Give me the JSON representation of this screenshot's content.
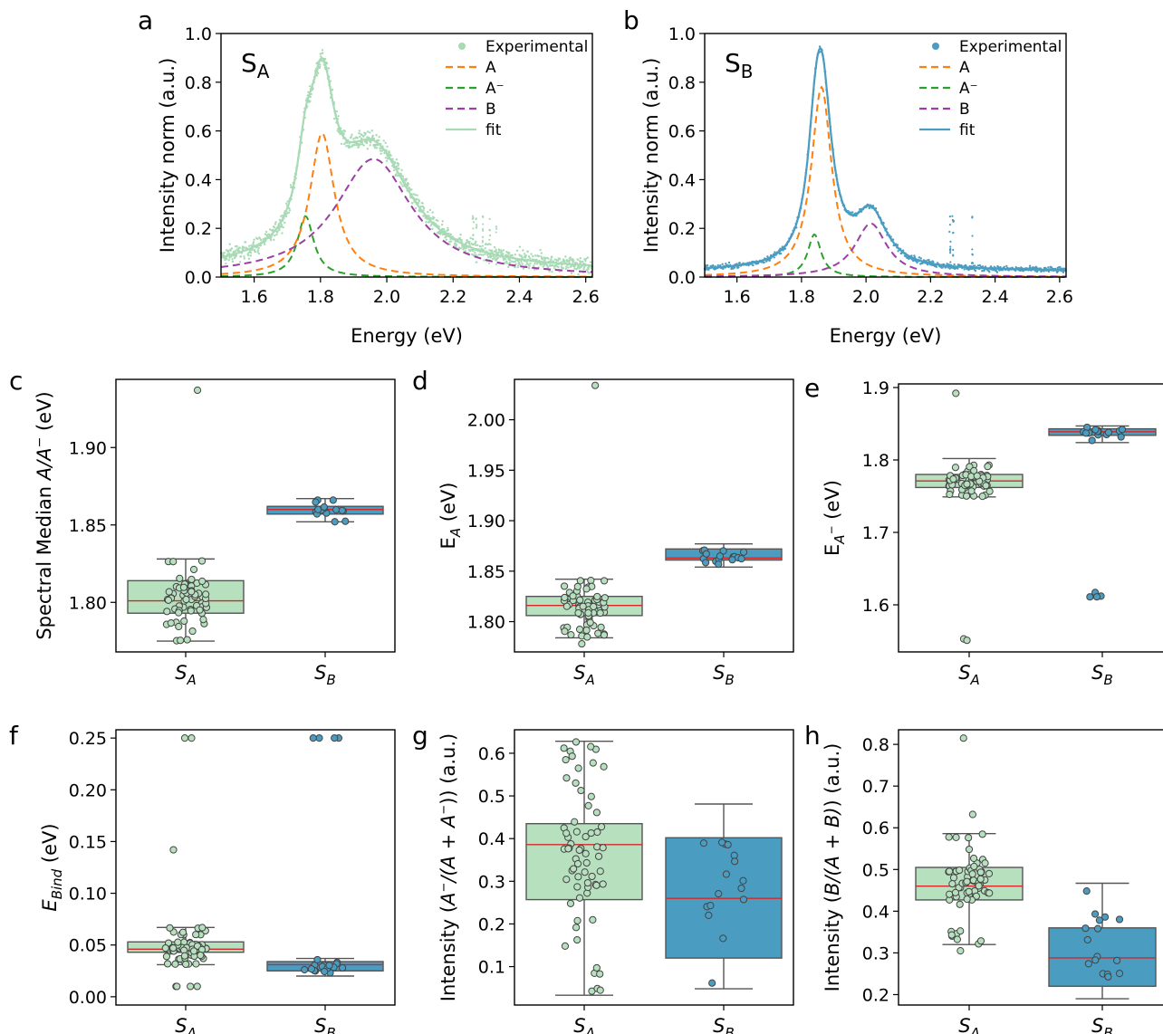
{
  "colors": {
    "sa_light": "#a8dab5",
    "sa_face": "#b7e0bf",
    "sb": "#4a9cc0",
    "sb_face": "#4a9cc0",
    "A": "#ff7f0e",
    "Aminus": "#2ca02c",
    "B": "#9b3fa3",
    "median": "#d62728",
    "edge": "#555555"
  },
  "chart_data": [
    {
      "panel": "a",
      "type": "line",
      "label_text": "S",
      "label_sub": "A",
      "xlabel": "Energy (eV)",
      "ylabel": "Intensity norm (a.u.)",
      "xlim": [
        1.5,
        2.62
      ],
      "ylim": [
        0,
        1.0
      ],
      "xticks": [
        "1.6",
        "1.8",
        "2.0",
        "2.2",
        "2.4",
        "2.6"
      ],
      "yticks": [
        "0.0",
        "0.2",
        "0.4",
        "0.6",
        "0.8",
        "1.0"
      ],
      "legend": [
        "Experimental",
        "A",
        "A⁻",
        "B",
        "fit"
      ],
      "legend_position": "top-right",
      "peaks": {
        "A": [
          1.805,
          0.59,
          0.045
        ],
        "Aminus": [
          1.755,
          0.25,
          0.03
        ],
        "B": [
          1.96,
          0.485,
          0.14
        ]
      },
      "x_range": [
        1.5,
        2.62
      ]
    },
    {
      "panel": "b",
      "type": "line",
      "label_text": "S",
      "label_sub": "B",
      "xlabel": "Energy (eV)",
      "ylabel": "Intensity norm (a.u.)",
      "xlim": [
        1.5,
        2.62
      ],
      "ylim": [
        0,
        1.0
      ],
      "xticks": [
        "1.6",
        "1.8",
        "2.0",
        "2.2",
        "2.4",
        "2.6"
      ],
      "yticks": [
        "0.0",
        "0.2",
        "0.4",
        "0.6",
        "0.8",
        "1.0"
      ],
      "legend": [
        "Experimental",
        "A",
        "A⁻",
        "B",
        "fit"
      ],
      "legend_position": "top-right",
      "peaks": {
        "A": [
          1.862,
          0.78,
          0.038
        ],
        "Aminus": [
          1.84,
          0.175,
          0.025
        ],
        "B": [
          2.015,
          0.22,
          0.06
        ]
      },
      "x_range": [
        1.5,
        2.62
      ]
    },
    {
      "panel": "c",
      "type": "box",
      "ylabel": "Spectral Median A/A⁻ (eV)",
      "ylabel_parts": [
        "Spectral Median ",
        "A/A",
        "−",
        " (eV)"
      ],
      "ylim": [
        1.768,
        1.944
      ],
      "yticks": [
        "1.80",
        "1.85",
        "1.90"
      ],
      "categories": [
        "SA",
        "SB"
      ],
      "groups": [
        {
          "name": "SA",
          "whisker_low": 1.775,
          "q1": 1.793,
          "median": 1.801,
          "q3": 1.814,
          "whisker_high": 1.828,
          "outliers": [
            1.937
          ],
          "n": 65
        },
        {
          "name": "SB",
          "whisker_low": 1.852,
          "q1": 1.857,
          "median": 1.86,
          "q3": 1.862,
          "whisker_high": 1.867,
          "outliers": [],
          "n": 16
        }
      ]
    },
    {
      "panel": "d",
      "type": "box",
      "ylabel": "E_A (eV)",
      "ylim": [
        1.77,
        2.04
      ],
      "yticks": [
        "1.80",
        "1.85",
        "1.90",
        "1.95",
        "2.00"
      ],
      "categories": [
        "SA",
        "SB"
      ],
      "groups": [
        {
          "name": "SA",
          "whisker_low": 1.784,
          "q1": 1.806,
          "median": 1.816,
          "q3": 1.825,
          "whisker_high": 1.842,
          "outliers": [
            2.034,
            1.778
          ],
          "n": 65
        },
        {
          "name": "SB",
          "whisker_low": 1.854,
          "q1": 1.861,
          "median": 1.863,
          "q3": 1.872,
          "whisker_high": 1.877,
          "outliers": [],
          "n": 16
        }
      ]
    },
    {
      "panel": "e",
      "type": "box",
      "ylabel": "E_A⁻ (eV)",
      "ylim": [
        1.535,
        1.905
      ],
      "yticks": [
        "1.6",
        "1.7",
        "1.8",
        "1.9"
      ],
      "categories": [
        "SA",
        "SB"
      ],
      "groups": [
        {
          "name": "SA",
          "whisker_low": 1.749,
          "q1": 1.762,
          "median": 1.771,
          "q3": 1.78,
          "whisker_high": 1.802,
          "outliers": [
            1.892,
            1.553,
            1.551
          ],
          "n": 65
        },
        {
          "name": "SB",
          "whisker_low": 1.824,
          "q1": 1.834,
          "median": 1.839,
          "q3": 1.843,
          "whisker_high": 1.847,
          "outliers": [
            1.617,
            1.612,
            1.611,
            1.611
          ],
          "n": 16
        }
      ]
    },
    {
      "panel": "f",
      "type": "box",
      "ylabel": "E_Bind (eV)",
      "ylim": [
        -0.008,
        0.258
      ],
      "yticks": [
        "0.00",
        "0.05",
        "0.10",
        "0.15",
        "0.20",
        "0.25"
      ],
      "categories": [
        "SA",
        "SB"
      ],
      "groups": [
        {
          "name": "SA",
          "whisker_low": 0.031,
          "q1": 0.043,
          "median": 0.046,
          "q3": 0.053,
          "whisker_high": 0.067,
          "outliers": [
            0.25,
            0.25,
            0.142,
            0.01,
            0.01,
            0.01,
            0.01
          ],
          "n": 65
        },
        {
          "name": "SB",
          "whisker_low": 0.02,
          "q1": 0.025,
          "median": 0.031,
          "q3": 0.034,
          "whisker_high": 0.037,
          "outliers": [
            0.25,
            0.25,
            0.25,
            0.25
          ],
          "n": 16
        }
      ]
    },
    {
      "panel": "g",
      "type": "box",
      "ylabel": "Intensity (A⁻/(A+A⁻)) (a.u.)",
      "ylim": [
        0.01,
        0.655
      ],
      "yticks": [
        "0.1",
        "0.2",
        "0.3",
        "0.4",
        "0.5",
        "0.6"
      ],
      "categories": [
        "SA",
        "SB"
      ],
      "groups": [
        {
          "name": "SA",
          "whisker_low": 0.033,
          "q1": 0.257,
          "median": 0.386,
          "q3": 0.435,
          "whisker_high": 0.628,
          "outliers": [],
          "n": 65
        },
        {
          "name": "SB",
          "whisker_low": 0.048,
          "q1": 0.12,
          "median": 0.26,
          "q3": 0.402,
          "whisker_high": 0.481,
          "outliers": [],
          "n": 16
        }
      ]
    },
    {
      "panel": "h",
      "type": "box",
      "ylabel": "Intensity (B/(A+B)) (a.u.)",
      "ylim": [
        0.175,
        0.835
      ],
      "yticks": [
        "0.2",
        "0.3",
        "0.4",
        "0.5",
        "0.6",
        "0.7",
        "0.8"
      ],
      "categories": [
        "SA",
        "SB"
      ],
      "groups": [
        {
          "name": "SA",
          "whisker_low": 0.32,
          "q1": 0.427,
          "median": 0.46,
          "q3": 0.505,
          "whisker_high": 0.586,
          "outliers": [
            0.815,
            0.632,
            0.305
          ],
          "n": 65
        },
        {
          "name": "SB",
          "whisker_low": 0.19,
          "q1": 0.22,
          "median": 0.288,
          "q3": 0.36,
          "whisker_high": 0.467,
          "outliers": [],
          "n": 16
        }
      ]
    }
  ]
}
